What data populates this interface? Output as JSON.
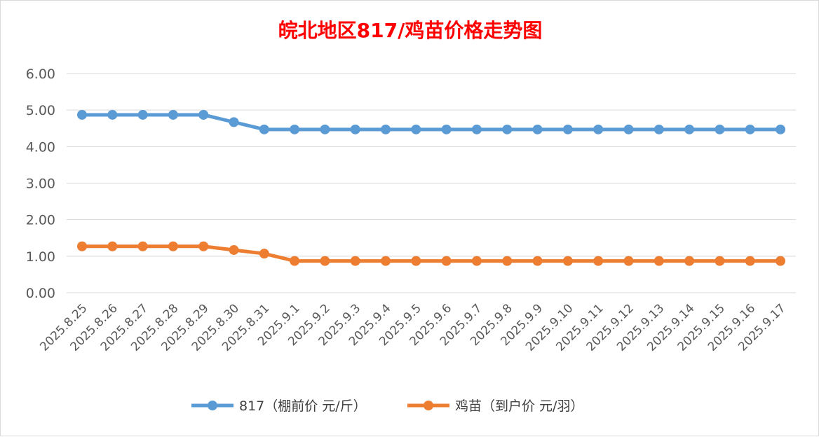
{
  "chart_data": {
    "type": "line",
    "title": "皖北地区817/鸡苗价格走势图",
    "x": [
      "2025.8.25",
      "2025.8.26",
      "2025.8.27",
      "2025.8.28",
      "2025.8.29",
      "2025.8.30",
      "2025.8.31",
      "2025.9.1",
      "2025.9.2",
      "2025.9.3",
      "2025.9.4",
      "2025.9.5",
      "2025.9.6",
      "2025.9.7",
      "2025.9.8",
      "2025.9.9",
      "2025.9.10",
      "2025.9.11",
      "2025.9.12",
      "2025.9.13",
      "2025.9.14",
      "2025.9.15",
      "2025.9.16",
      "2025.9.17"
    ],
    "ylim": [
      0,
      6
    ],
    "yticks": [
      "0.00",
      "1.00",
      "2.00",
      "3.00",
      "4.00",
      "5.00",
      "6.00"
    ],
    "grid": true,
    "legend_position": "bottom",
    "series": [
      {
        "name": "817（棚前价 元/斤）",
        "color": "#5b9bd5",
        "values": [
          4.87,
          4.87,
          4.87,
          4.87,
          4.87,
          4.67,
          4.47,
          4.47,
          4.47,
          4.47,
          4.47,
          4.47,
          4.47,
          4.47,
          4.47,
          4.47,
          4.47,
          4.47,
          4.47,
          4.47,
          4.47,
          4.47,
          4.47,
          4.47
        ]
      },
      {
        "name": "鸡苗（到户价 元/羽）",
        "color": "#ed7d31",
        "values": [
          1.27,
          1.27,
          1.27,
          1.27,
          1.27,
          1.17,
          1.07,
          0.87,
          0.87,
          0.87,
          0.87,
          0.87,
          0.87,
          0.87,
          0.87,
          0.87,
          0.87,
          0.87,
          0.87,
          0.87,
          0.87,
          0.87,
          0.87,
          0.87
        ]
      }
    ]
  }
}
